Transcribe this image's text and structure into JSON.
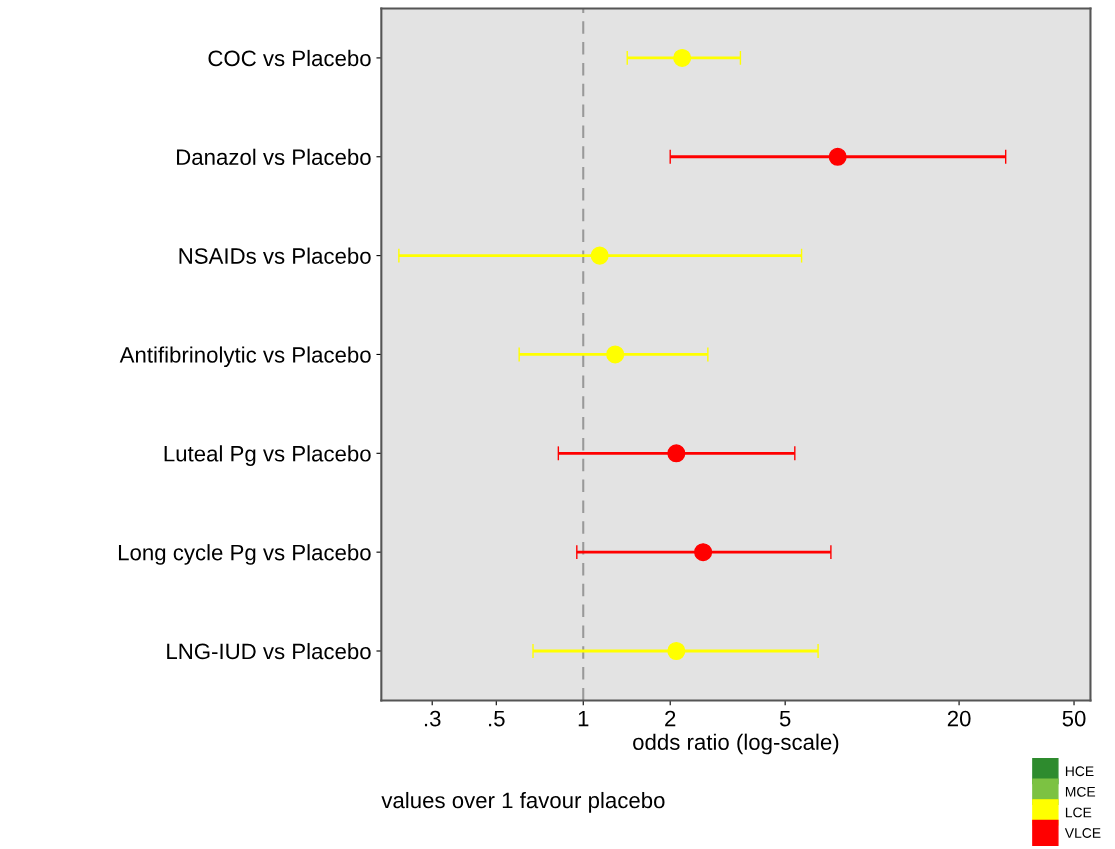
{
  "chart_data": {
    "type": "scatter",
    "orientation": "horizontal",
    "categories": [
      "COC vs Placebo",
      "Danazol vs Placebo",
      "NSAIDs vs Placebo",
      "Antifibrinolytic vs Placebo",
      "Luteal Pg vs Placebo",
      "Long cycle Pg vs Placebo",
      "LNG-IUD vs Placebo"
    ],
    "series": [
      {
        "name": "HCE",
        "color": "#2e8b2e",
        "values": [
          null,
          null,
          null,
          null,
          null,
          null,
          null
        ],
        "errors": [
          null,
          null,
          null,
          null,
          null,
          null,
          null
        ]
      },
      {
        "name": "MCE",
        "color": "#7cc242",
        "values": [
          null,
          null,
          null,
          null,
          null,
          null,
          null
        ],
        "errors": [
          null,
          null,
          null,
          null,
          null,
          null,
          null
        ]
      },
      {
        "name": "LCE",
        "color": "#ffff00",
        "values": [
          2.2,
          null,
          1.14,
          1.29,
          null,
          null,
          2.1
        ],
        "errors": [
          [
            1.42,
            3.5
          ],
          null,
          [
            0.23,
            5.7
          ],
          [
            0.6,
            2.7
          ],
          null,
          null,
          [
            0.67,
            6.5
          ]
        ]
      },
      {
        "name": "VLCE",
        "color": "#ff0000",
        "values": [
          null,
          7.6,
          null,
          null,
          2.1,
          2.6,
          null
        ],
        "errors": [
          null,
          [
            2.0,
            29
          ],
          null,
          null,
          [
            0.82,
            5.4
          ],
          [
            0.95,
            7.2
          ],
          null
        ]
      }
    ],
    "xlabel": "odds ratio (log-scale)",
    "annotations": [
      "values over 1 favour placebo"
    ],
    "log": "x",
    "xlim": [
      0.2,
      57
    ],
    "xticks": [
      {
        "value": 0.3,
        "label": ".3"
      },
      {
        "value": 0.5,
        "label": ".5"
      },
      1,
      2,
      5,
      20,
      50
    ],
    "ref_lines": [
      {
        "axis": "x",
        "value": 1,
        "color": "#999999",
        "line_style": "dashed"
      }
    ],
    "marker": "circle",
    "grid": false,
    "legend": "bottom right"
  }
}
